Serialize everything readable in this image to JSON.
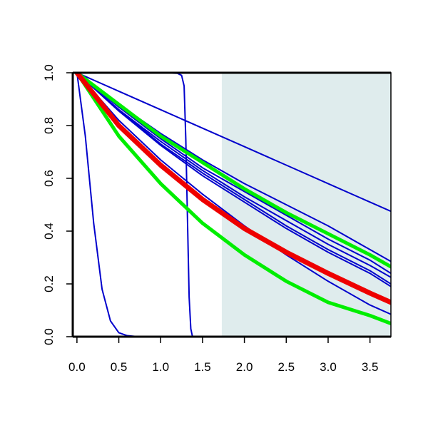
{
  "chart_data": {
    "type": "line",
    "title": "",
    "xlabel": "",
    "ylabel": "",
    "xlim": [
      -0.05,
      3.75
    ],
    "ylim": [
      0.0,
      1.0
    ],
    "x_ticks": [
      "0.0",
      "0.5",
      "1.0",
      "1.5",
      "2.0",
      "2.5",
      "3.0",
      "3.5"
    ],
    "y_ticks": [
      "0.0",
      "0.2",
      "0.4",
      "0.6",
      "0.8",
      "1.0"
    ],
    "grid": false,
    "legend": "none",
    "shaded_region": {
      "x_from": 1.73,
      "x_to": 3.75,
      "color": "#dfeced"
    },
    "series": [
      {
        "color": "#0000cc",
        "width": 2,
        "x": [
          0.0,
          0.1,
          0.2,
          0.3,
          0.4,
          0.5,
          0.6,
          0.7,
          0.8,
          1.0,
          1.5,
          2.0,
          3.75
        ],
        "y": [
          1.0,
          0.76,
          0.43,
          0.18,
          0.06,
          0.015,
          0.004,
          0.001,
          0.0,
          0.0,
          0.0,
          0.0,
          0.0
        ]
      },
      {
        "color": "#0000cc",
        "width": 2,
        "x": [
          0.0,
          0.5,
          1.0,
          1.2,
          1.25,
          1.28,
          1.3,
          1.32,
          1.34,
          1.36,
          1.38,
          1.5,
          2.0,
          3.75
        ],
        "y": [
          1.0,
          1.0,
          1.0,
          0.998,
          0.99,
          0.95,
          0.75,
          0.45,
          0.15,
          0.03,
          0.0,
          0.0,
          0.0,
          0.0
        ]
      },
      {
        "color": "#0000cc",
        "width": 2,
        "x": [
          0.0,
          0.5,
          1.0,
          1.5,
          2.0,
          2.5,
          3.0,
          3.5,
          3.75
        ],
        "y": [
          1.0,
          0.93,
          0.86,
          0.79,
          0.72,
          0.65,
          0.58,
          0.51,
          0.475
        ]
      },
      {
        "color": "#0000cc",
        "width": 2,
        "x": [
          0.0,
          0.5,
          1.0,
          1.5,
          2.0,
          2.5,
          3.0,
          3.5,
          3.75
        ],
        "y": [
          1.0,
          0.88,
          0.77,
          0.67,
          0.58,
          0.5,
          0.42,
          0.33,
          0.285
        ]
      },
      {
        "color": "#0000cc",
        "width": 2,
        "x": [
          0.0,
          0.5,
          1.0,
          1.5,
          2.0,
          2.5,
          3.0,
          3.5,
          3.75
        ],
        "y": [
          1.0,
          0.87,
          0.75,
          0.64,
          0.55,
          0.46,
          0.37,
          0.29,
          0.24
        ]
      },
      {
        "color": "#0000cc",
        "width": 2,
        "x": [
          0.0,
          0.5,
          1.0,
          1.5,
          2.0,
          2.5,
          3.0,
          3.5,
          3.75
        ],
        "y": [
          1.0,
          0.86,
          0.74,
          0.63,
          0.53,
          0.44,
          0.35,
          0.27,
          0.225
        ]
      },
      {
        "color": "#0000cc",
        "width": 2,
        "x": [
          0.0,
          0.5,
          1.0,
          1.5,
          2.0,
          2.5,
          3.0,
          3.5,
          3.75
        ],
        "y": [
          1.0,
          0.86,
          0.73,
          0.62,
          0.52,
          0.42,
          0.33,
          0.25,
          0.2
        ]
      },
      {
        "color": "#0000cc",
        "width": 2,
        "x": [
          0.0,
          0.5,
          1.0,
          1.5,
          2.0,
          2.5,
          3.0,
          3.5,
          3.75
        ],
        "y": [
          1.0,
          0.855,
          0.725,
          0.61,
          0.51,
          0.41,
          0.32,
          0.24,
          0.19
        ]
      },
      {
        "color": "#0000cc",
        "width": 2,
        "x": [
          0.0,
          0.5,
          1.0,
          1.5,
          2.0,
          2.5,
          3.0,
          3.5,
          3.75
        ],
        "y": [
          1.0,
          0.82,
          0.67,
          0.54,
          0.42,
          0.31,
          0.21,
          0.12,
          0.085
        ]
      },
      {
        "color": "#00ee00",
        "width": 5,
        "x": [
          0.0,
          0.5,
          1.0,
          1.5,
          2.0,
          2.5,
          3.0,
          3.5,
          3.75
        ],
        "y": [
          1.0,
          0.88,
          0.76,
          0.66,
          0.56,
          0.47,
          0.39,
          0.31,
          0.265
        ]
      },
      {
        "color": "#00ee00",
        "width": 5,
        "x": [
          0.0,
          0.5,
          1.0,
          1.5,
          2.0,
          2.5,
          3.0,
          3.5,
          3.75
        ],
        "y": [
          1.0,
          0.76,
          0.58,
          0.43,
          0.31,
          0.21,
          0.13,
          0.08,
          0.05
        ]
      },
      {
        "color": "#ee0000",
        "width": 7,
        "x": [
          0.0,
          0.5,
          1.0,
          1.5,
          2.0,
          2.5,
          3.0,
          3.5,
          3.75
        ],
        "y": [
          1.0,
          0.8,
          0.65,
          0.52,
          0.41,
          0.32,
          0.24,
          0.165,
          0.13
        ]
      }
    ]
  }
}
